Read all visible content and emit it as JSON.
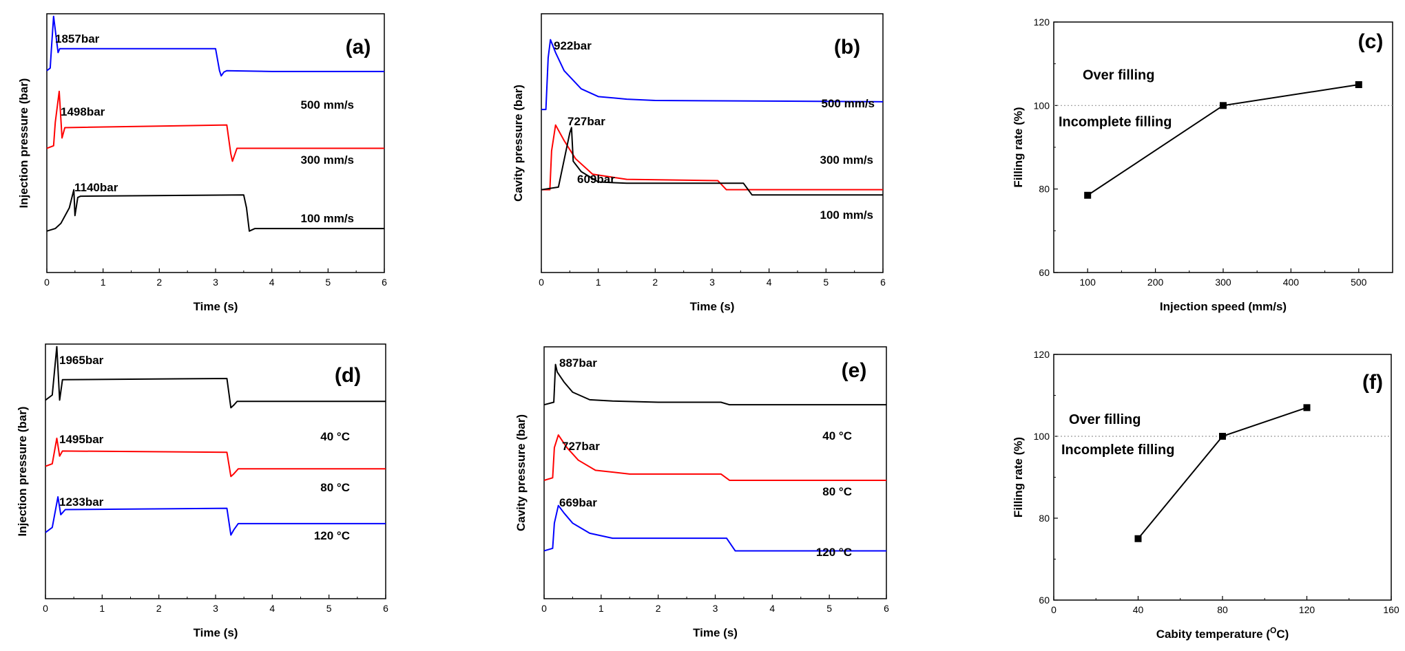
{
  "chart_data": [
    {
      "id": "a",
      "type": "line",
      "panel_label": "(a)",
      "title": "",
      "xlabel": "Time (s)",
      "ylabel": "Injection pressure (bar)",
      "xlim": [
        0,
        6
      ],
      "ylim": [
        0,
        10
      ],
      "xticks": [
        "0",
        "1",
        "2",
        "3",
        "4",
        "5",
        "6"
      ],
      "yticks": [],
      "series": [
        {
          "name": "500 mm/s",
          "color": "#0000ff",
          "peak_label": "1857bar",
          "peak_index": 3,
          "x": [
            0,
            0.06,
            0.08,
            0.12,
            0.2,
            0.23,
            3.0,
            3.07,
            3.1,
            3.15,
            3.2,
            4.0,
            6.0
          ],
          "y": [
            7.8,
            7.9,
            8.6,
            9.9,
            8.5,
            8.65,
            8.65,
            7.8,
            7.6,
            7.75,
            7.8,
            7.77,
            7.77
          ]
        },
        {
          "name": "300 mm/s",
          "color": "#ff0000",
          "peak_label": "1498bar",
          "peak_index": 3,
          "x": [
            0,
            0.12,
            0.15,
            0.22,
            0.27,
            0.32,
            3.2,
            3.27,
            3.3,
            3.38,
            6.0
          ],
          "y": [
            4.8,
            4.9,
            5.8,
            7.0,
            5.2,
            5.6,
            5.7,
            4.6,
            4.3,
            4.8,
            4.8
          ]
        },
        {
          "name": "100 mm/s",
          "color": "#000000",
          "peak_label": "1140bar",
          "peak_index": 4,
          "x": [
            0,
            0.15,
            0.25,
            0.4,
            0.48,
            0.5,
            0.55,
            0.6,
            3.5,
            3.55,
            3.6,
            3.7,
            6.0
          ],
          "y": [
            1.6,
            1.7,
            1.9,
            2.5,
            3.2,
            2.2,
            2.9,
            2.95,
            3.0,
            2.5,
            1.6,
            1.7,
            1.7
          ]
        }
      ]
    },
    {
      "id": "b",
      "type": "line",
      "panel_label": "(b)",
      "title": "",
      "xlabel": "Time (s)",
      "ylabel": "Cavity pressure (bar)",
      "xlim": [
        0,
        6
      ],
      "ylim": [
        0,
        10
      ],
      "xticks": [
        "0",
        "1",
        "2",
        "3",
        "4",
        "5",
        "6"
      ],
      "yticks": [],
      "series": [
        {
          "name": "500 mm/s",
          "color": "#0000ff",
          "peak_label": "922bar",
          "peak_index": 2,
          "x": [
            0,
            0.08,
            0.12,
            0.16,
            0.25,
            0.4,
            0.7,
            1.0,
            1.5,
            2.0,
            6.0
          ],
          "y": [
            6.3,
            6.3,
            8.3,
            9.0,
            8.5,
            7.8,
            7.1,
            6.8,
            6.7,
            6.65,
            6.6
          ]
        },
        {
          "name": "300 mm/s",
          "color": "#ff0000",
          "peak_label": "727bar",
          "peak_index": 3,
          "x": [
            0,
            0.15,
            0.18,
            0.25,
            0.4,
            0.6,
            0.9,
            1.5,
            3.1,
            3.25,
            6.0
          ],
          "y": [
            3.2,
            3.2,
            4.7,
            5.7,
            5.1,
            4.4,
            3.8,
            3.6,
            3.55,
            3.2,
            3.2
          ]
        },
        {
          "name": "100 mm/s",
          "color": "#000000",
          "peak_label": "609bar",
          "peak_index": 2,
          "x": [
            0,
            0.3,
            0.5,
            0.53,
            0.56,
            0.7,
            1.0,
            1.5,
            3.55,
            3.7,
            6.0
          ],
          "y": [
            3.2,
            3.3,
            5.4,
            5.6,
            4.3,
            3.9,
            3.5,
            3.45,
            3.45,
            3.0,
            3.0
          ]
        }
      ]
    },
    {
      "id": "c",
      "type": "line",
      "panel_label": "(c)",
      "title": "",
      "xlabel": "Injection speed (mm/s)",
      "ylabel": "Filling rate (%)",
      "xlim": [
        50,
        550
      ],
      "ylim": [
        60,
        120
      ],
      "xticks": [
        "100",
        "200",
        "300",
        "400",
        "500"
      ],
      "yticks": [
        "60",
        "80",
        "100",
        "120"
      ],
      "reference_line": 100,
      "region_labels": {
        "over": "Over filling",
        "incomplete": "Incomplete filling"
      },
      "series": [
        {
          "name": "Filling rate",
          "color": "#000000",
          "x": [
            100,
            300,
            500
          ],
          "y": [
            78.5,
            100,
            105
          ]
        }
      ]
    },
    {
      "id": "d",
      "type": "line",
      "panel_label": "(d)",
      "title": "",
      "xlabel": "Time (s)",
      "ylabel": "Injection pressure (bar)",
      "xlim": [
        0,
        6
      ],
      "ylim": [
        0,
        10
      ],
      "xticks": [
        "0",
        "1",
        "2",
        "3",
        "4",
        "5",
        "6"
      ],
      "yticks": [],
      "series": [
        {
          "name": "40 °C",
          "color": "#000000",
          "peak_label": "1965bar",
          "peak_index": 2,
          "x": [
            0,
            0.12,
            0.2,
            0.25,
            0.3,
            3.2,
            3.27,
            3.32,
            3.38,
            6.0
          ],
          "y": [
            7.8,
            8.0,
            9.9,
            7.8,
            8.6,
            8.65,
            7.5,
            7.6,
            7.75,
            7.75
          ]
        },
        {
          "name": "80 °C",
          "color": "#ff0000",
          "peak_label": "1495bar",
          "peak_index": 2,
          "x": [
            0,
            0.12,
            0.2,
            0.25,
            0.3,
            3.2,
            3.27,
            3.32,
            3.4,
            6.0
          ],
          "y": [
            5.2,
            5.3,
            6.3,
            5.6,
            5.8,
            5.75,
            4.8,
            4.9,
            5.1,
            5.1
          ]
        },
        {
          "name": "120 °C",
          "color": "#0000ff",
          "peak_label": "1233bar",
          "peak_index": 2,
          "x": [
            0,
            0.12,
            0.22,
            0.27,
            0.35,
            3.2,
            3.27,
            3.32,
            3.4,
            6.0
          ],
          "y": [
            2.6,
            2.8,
            4.0,
            3.3,
            3.5,
            3.55,
            2.5,
            2.7,
            2.95,
            2.95
          ]
        }
      ]
    },
    {
      "id": "e",
      "type": "line",
      "panel_label": "(e)",
      "title": "",
      "xlabel": "Time (s)",
      "ylabel": "Cavity pressure (bar)",
      "xlim": [
        0,
        6
      ],
      "ylim": [
        0,
        10
      ],
      "xticks": [
        "0",
        "1",
        "2",
        "3",
        "4",
        "5",
        "6"
      ],
      "yticks": [],
      "series": [
        {
          "name": "40 °C",
          "color": "#000000",
          "peak_label": "887bar",
          "peak_index": 2,
          "x": [
            0,
            0.17,
            0.2,
            0.23,
            0.35,
            0.5,
            0.8,
            1.2,
            2.0,
            3.1,
            3.25,
            6.0
          ],
          "y": [
            7.7,
            7.8,
            9.3,
            9.0,
            8.6,
            8.2,
            7.9,
            7.85,
            7.8,
            7.8,
            7.7,
            7.7
          ]
        },
        {
          "name": "80 °C",
          "color": "#ff0000",
          "peak_label": "727bar",
          "peak_index": 3,
          "x": [
            0,
            0.15,
            0.18,
            0.25,
            0.4,
            0.6,
            0.9,
            1.5,
            3.1,
            3.25,
            6.0
          ],
          "y": [
            4.7,
            4.8,
            6.0,
            6.5,
            6.0,
            5.5,
            5.1,
            4.95,
            4.95,
            4.7,
            4.7
          ]
        },
        {
          "name": "120 °C",
          "color": "#0000ff",
          "peak_label": "669bar",
          "peak_index": 3,
          "x": [
            0,
            0.15,
            0.18,
            0.25,
            0.35,
            0.5,
            0.8,
            1.2,
            3.2,
            3.35,
            6.0
          ],
          "y": [
            1.9,
            2.0,
            3.0,
            3.7,
            3.4,
            3.0,
            2.6,
            2.4,
            2.4,
            1.9,
            1.9
          ]
        }
      ]
    },
    {
      "id": "f",
      "type": "line",
      "panel_label": "(f)",
      "title": "",
      "xlabel": "Cabity temperature (",
      "xlabel_superscript": "O",
      "xlabel_suffix": "C)",
      "ylabel": "Filling rate (%)",
      "xlim": [
        0,
        160
      ],
      "ylim": [
        60,
        120
      ],
      "xticks": [
        "0",
        "40",
        "80",
        "120",
        "160"
      ],
      "yticks": [
        "60",
        "80",
        "100",
        "120"
      ],
      "reference_line": 100,
      "region_labels": {
        "over": "Over filling",
        "incomplete": "Incomplete filling"
      },
      "series": [
        {
          "name": "Filling rate",
          "color": "#000000",
          "x": [
            40,
            80,
            120
          ],
          "y": [
            75,
            100,
            107
          ]
        }
      ]
    }
  ]
}
